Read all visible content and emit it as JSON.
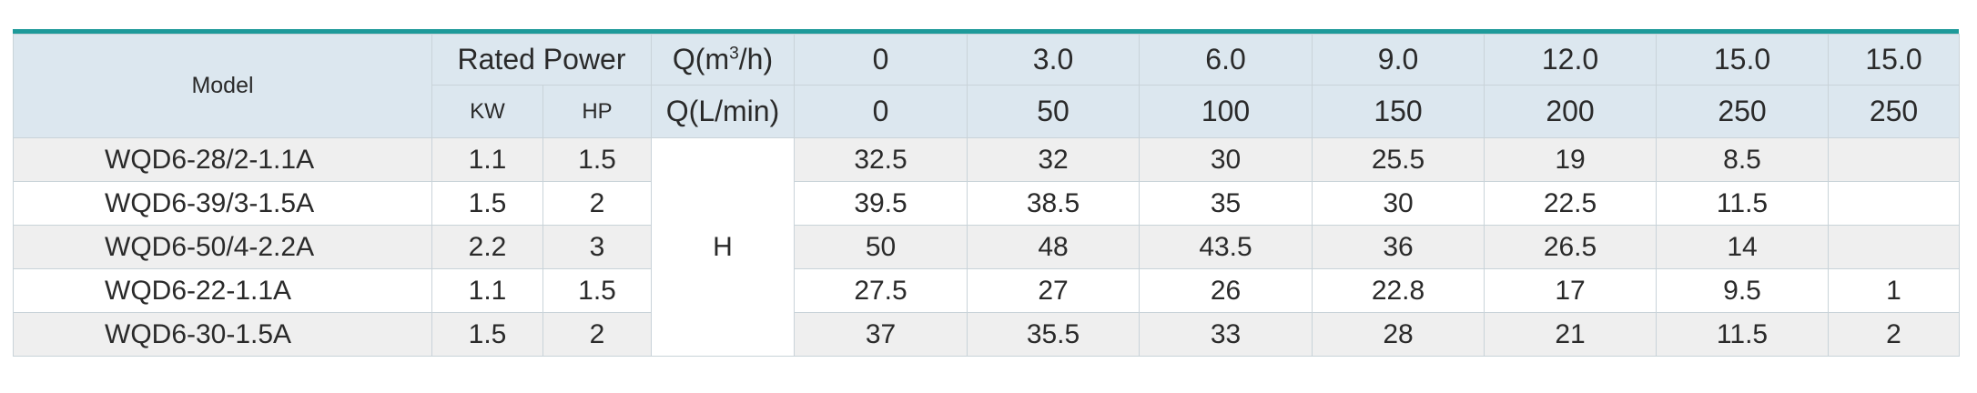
{
  "table": {
    "header": {
      "model": "Model",
      "rated_power": "Rated Power",
      "q_m3h_prefix": "Q(m",
      "q_m3h_sup": "3",
      "q_m3h_suffix": "/h)",
      "q_lmin": "Q(L/min)",
      "kw": "KW",
      "hp": "HP",
      "flow_m3h": [
        "0",
        "3.0",
        "6.0",
        "9.0",
        "12.0",
        "15.0",
        "15.0"
      ],
      "flow_lmin": [
        "0",
        "50",
        "100",
        "150",
        "200",
        "250",
        "250"
      ]
    },
    "head_label": "H",
    "rows": [
      {
        "model": "WQD6-28/2-1.1A",
        "kw": "1.1",
        "hp": "1.5",
        "h": [
          "32.5",
          "32",
          "30",
          "25.5",
          "19",
          "8.5",
          ""
        ]
      },
      {
        "model": "WQD6-39/3-1.5A",
        "kw": "1.5",
        "hp": "2",
        "h": [
          "39.5",
          "38.5",
          "35",
          "30",
          "22.5",
          "11.5",
          ""
        ]
      },
      {
        "model": "WQD6-50/4-2.2A",
        "kw": "2.2",
        "hp": "3",
        "h": [
          "50",
          "48",
          "43.5",
          "36",
          "26.5",
          "14",
          ""
        ]
      },
      {
        "model": "WQD6-22-1.1A",
        "kw": "1.1",
        "hp": "1.5",
        "h": [
          "27.5",
          "27",
          "26",
          "22.8",
          "17",
          "9.5",
          "1"
        ]
      },
      {
        "model": "WQD6-30-1.5A",
        "kw": "1.5",
        "hp": "2",
        "h": [
          "37",
          "35.5",
          "33",
          "28",
          "21",
          "11.5",
          "2"
        ]
      }
    ]
  }
}
